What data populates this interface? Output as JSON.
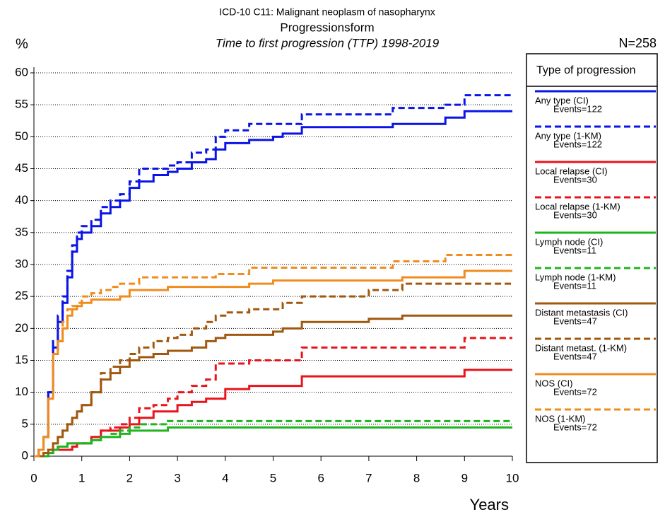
{
  "chart_data": {
    "type": "step",
    "title": "ICD-10 C11: Malignant neoplasm of nasopharynx",
    "subtitle": "Progressionsform",
    "subtitle2": "Time to first progression (TTP) 1998-2019",
    "annotation": "N=258",
    "ylabel": "%",
    "xlabel": "Years",
    "legend_title": "Type of progression",
    "legend_position": "right",
    "grid": true,
    "xlim": [
      0,
      10
    ],
    "xticks": [
      0,
      1,
      2,
      3,
      4,
      5,
      6,
      7,
      8,
      9,
      10
    ],
    "ylim": [
      0,
      60
    ],
    "yticks": [
      0,
      5,
      10,
      15,
      20,
      25,
      30,
      35,
      40,
      45,
      50,
      55,
      60
    ],
    "x": [
      0,
      0.1,
      0.2,
      0.3,
      0.4,
      0.5,
      0.6,
      0.7,
      0.8,
      0.9,
      1.0,
      1.2,
      1.4,
      1.6,
      1.8,
      2.0,
      2.2,
      2.5,
      2.8,
      3.0,
      3.3,
      3.6,
      3.8,
      4.0,
      4.5,
      5.0,
      5.2,
      5.6,
      6.0,
      7.0,
      7.5,
      7.7,
      8.0,
      8.6,
      9.0,
      10.0
    ],
    "series": [
      {
        "name": "Any type (CI)",
        "detail": "Events=122",
        "color": "#0a14e6",
        "style": "solid",
        "values": [
          0,
          1,
          3,
          10,
          17,
          21,
          24,
          28,
          32,
          34,
          35,
          36,
          38,
          39,
          40,
          42,
          43,
          44,
          44.5,
          45,
          46,
          46.5,
          48,
          49,
          49.5,
          50,
          50.5,
          51.5,
          51.5,
          51.5,
          52,
          52,
          52,
          53,
          54,
          54
        ]
      },
      {
        "name": "Any type (1-KM)",
        "detail": "Events=122",
        "color": "#0a14e6",
        "style": "dashed",
        "values": [
          0,
          1,
          3,
          10,
          18,
          22,
          25,
          29,
          33,
          35,
          36,
          37,
          39,
          40,
          41,
          43,
          45,
          45,
          45.5,
          46,
          47.5,
          48,
          50,
          51,
          52,
          52,
          52,
          53.5,
          53.5,
          53.5,
          54.5,
          54.5,
          54.5,
          55,
          56.5,
          56.5
        ]
      },
      {
        "name": "Local relapse (CI)",
        "detail": "Events=30",
        "color": "#e8141b",
        "style": "solid",
        "values": [
          0,
          0,
          0,
          0.5,
          1,
          1,
          1,
          1,
          1.5,
          2,
          2,
          3,
          4,
          4,
          4.5,
          5,
          6,
          7,
          7,
          8,
          8.5,
          9,
          9,
          10.5,
          11,
          11,
          11,
          12.5,
          12.5,
          12.5,
          12.5,
          12.5,
          12.5,
          12.5,
          13.5,
          13.5
        ]
      },
      {
        "name": "Local relapse (1-KM)",
        "detail": "Events=30",
        "color": "#e8141b",
        "style": "dashed",
        "values": [
          0,
          0,
          0,
          0.5,
          1,
          1,
          1,
          1,
          1.5,
          2,
          2,
          3,
          4,
          4.5,
          5,
          6,
          7.5,
          8,
          9,
          10,
          11,
          12,
          14.5,
          14.5,
          15,
          15,
          15,
          17,
          17,
          17,
          17,
          17,
          17,
          17,
          18.5,
          18.5
        ]
      },
      {
        "name": "Lymph node (CI)",
        "detail": "Events=11",
        "color": "#1eb41e",
        "style": "solid",
        "values": [
          0,
          0,
          0,
          0.5,
          1,
          1.5,
          1.5,
          2,
          2,
          2,
          2,
          2.5,
          3,
          3,
          3.5,
          4,
          4,
          4,
          4.5,
          4.5,
          4.5,
          4.5,
          4.5,
          4.5,
          4.5,
          4.5,
          4.5,
          4.5,
          4.5,
          4.5,
          4.5,
          4.5,
          4.5,
          4.5,
          4.5,
          4.5
        ]
      },
      {
        "name": "Lymph node (1-KM)",
        "detail": "Events=11",
        "color": "#1eb41e",
        "style": "dashed",
        "values": [
          0,
          0,
          0,
          0.5,
          1,
          1.5,
          1.5,
          2,
          2,
          2,
          2,
          2.5,
          3,
          3.5,
          4,
          4.5,
          5,
          5,
          5.5,
          5.5,
          5.5,
          5.5,
          5.5,
          5.5,
          5.5,
          5.5,
          5.5,
          5.5,
          5.5,
          5.5,
          5.5,
          5.5,
          5.5,
          5.5,
          5.5,
          5.5
        ]
      },
      {
        "name": "Distant metastasis (CI)",
        "detail": "Events=47",
        "color": "#a0580f",
        "style": "solid",
        "values": [
          0,
          0,
          0.5,
          1,
          2,
          3,
          4,
          5,
          6,
          7,
          8,
          10,
          12,
          13,
          14,
          15,
          15.5,
          16,
          16.5,
          16.5,
          17,
          18,
          18.5,
          19,
          19,
          19.5,
          20,
          21,
          21,
          21.5,
          21.5,
          22,
          22,
          22,
          22,
          22
        ]
      },
      {
        "name": "Distant metast. (1-KM)",
        "detail": "Events=47",
        "color": "#a0580f",
        "style": "dashed",
        "values": [
          0,
          0,
          0.5,
          1,
          2,
          3,
          4,
          5,
          6,
          7,
          8,
          10,
          13,
          14,
          15,
          16,
          17,
          18,
          18.5,
          19,
          20,
          21,
          22,
          22.5,
          23,
          23,
          24,
          25,
          25,
          26,
          26,
          27,
          27,
          27,
          27,
          27
        ]
      },
      {
        "name": "NOS (CI)",
        "detail": "Events=72",
        "color": "#f08c1e",
        "style": "solid",
        "values": [
          0,
          1,
          3,
          9,
          16,
          18,
          20,
          22,
          23,
          23.5,
          24,
          24.5,
          24.5,
          24.5,
          25,
          26,
          26,
          26,
          26.5,
          26.5,
          26.5,
          26.5,
          26.5,
          26.5,
          27,
          27.5,
          27.5,
          27.5,
          27.5,
          27.5,
          27.5,
          28,
          28,
          28,
          29,
          29
        ]
      },
      {
        "name": "NOS (1-KM)",
        "detail": "Events=72",
        "color": "#f08c1e",
        "style": "dashed",
        "values": [
          0,
          1,
          3,
          9,
          16,
          18,
          21,
          23,
          23.5,
          24,
          25,
          25.5,
          26,
          26.5,
          27,
          27,
          28,
          28,
          28,
          28,
          28,
          28,
          28.5,
          28.5,
          29.5,
          29.5,
          29.5,
          29.5,
          29.5,
          29.5,
          30.5,
          30.5,
          30.5,
          31.5,
          31.5,
          31.5
        ]
      }
    ]
  }
}
